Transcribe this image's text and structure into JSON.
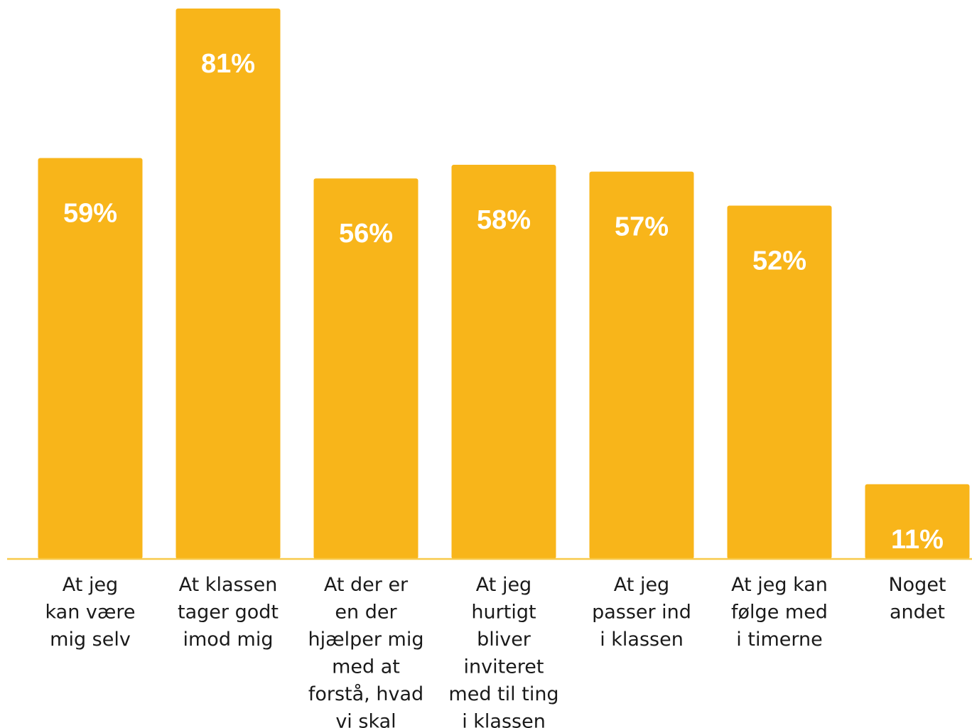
{
  "chart_data": {
    "type": "bar",
    "categories": [
      [
        "At jeg",
        "kan være",
        "mig selv"
      ],
      [
        "At klassen",
        "tager godt",
        "imod mig"
      ],
      [
        "At der er",
        "en der",
        "hjælper mig",
        "med at",
        "forstå, hvad",
        "vi skal"
      ],
      [
        "At jeg",
        "hurtigt",
        "bliver",
        "inviteret",
        "med til ting",
        "i klassen"
      ],
      [
        "At jeg",
        "passer ind",
        "i klassen"
      ],
      [
        "At jeg kan",
        "følge med",
        "i timerne"
      ],
      [
        "Noget",
        "andet"
      ]
    ],
    "values": [
      59,
      81,
      56,
      58,
      57,
      52,
      11
    ],
    "value_labels": [
      "59%",
      "81%",
      "56%",
      "58%",
      "57%",
      "52%",
      "11%"
    ],
    "ylim": [
      0,
      81
    ],
    "grid": false,
    "title": "",
    "xlabel": "",
    "ylabel": ""
  },
  "colors": {
    "bar": "#F8B51A",
    "axis": "#F8C94A",
    "bar_text": "#ffffff",
    "category_text": "#1a1a1a"
  }
}
